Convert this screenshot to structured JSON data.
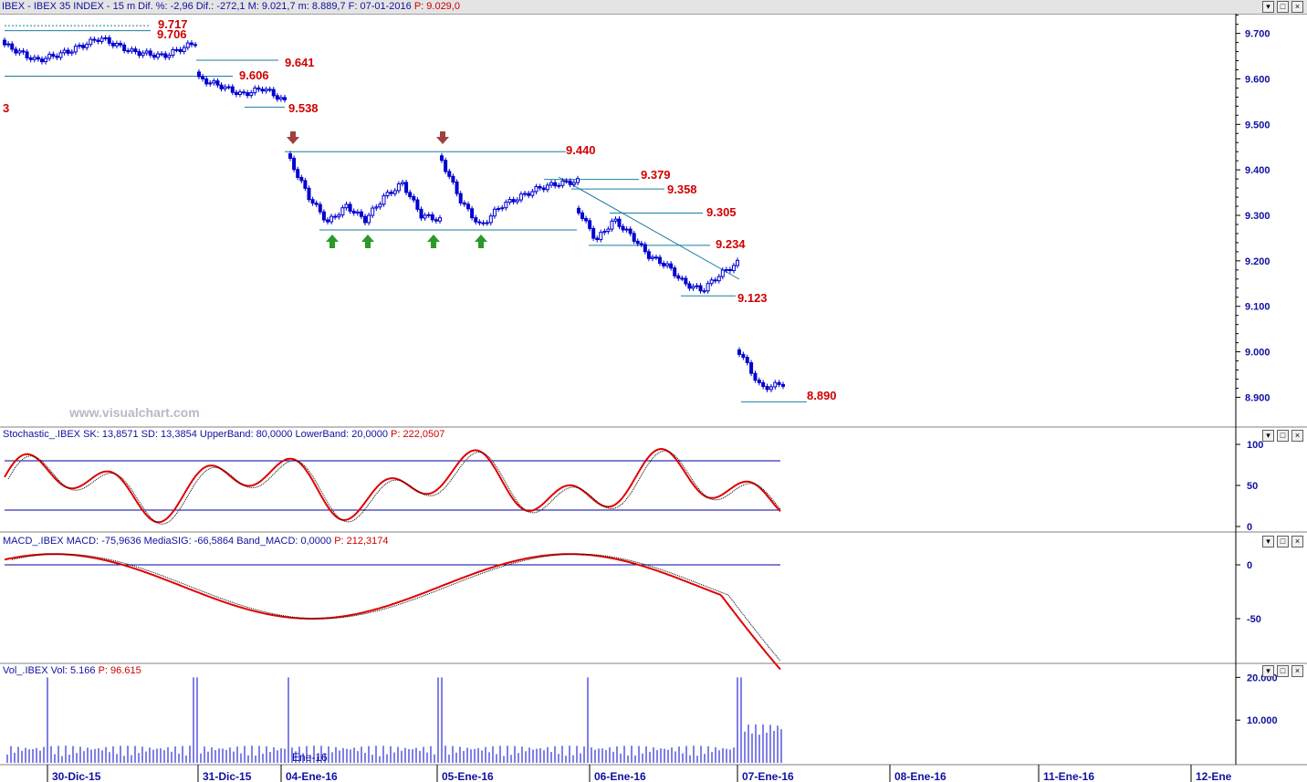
{
  "header": {
    "title": "IBEX - IBEX 35 INDEX - 15 m  Dif. %: -2,96  Dif.: -272,1  M: 9.021,7  m: 8.889,7  F: 07-01-2016",
    "price": "P: 9.029,0"
  },
  "window_buttons": [
    "▾",
    "□",
    "×"
  ],
  "watermark": "www.visualchart.com",
  "panels": {
    "stochastic": {
      "name": "Stochastic_.IBEX",
      "values": "SK: 13,8571  SD: 13,3854  UpperBand: 80,0000  LowerBand: 20,0000",
      "price": "P: 222,0507",
      "ticks": [
        "100",
        "50",
        "0"
      ]
    },
    "macd": {
      "name": "MACD_.IBEX",
      "values": "MACD: -75,9636  MediaSIG: -66,5864  Band_MACD: 0,0000",
      "price": "P: 212,3174",
      "ticks": [
        "0",
        "-50"
      ]
    },
    "volume": {
      "name": "Vol_.IBEX",
      "values": "Vol: 5.166",
      "price": "P: 96.615",
      "ticks": [
        "20.000",
        "10.000"
      ]
    }
  },
  "colors": {
    "candle": "#0000d0",
    "level_line": "#1a7fa0",
    "level_label": "#d00000",
    "indicator": "#e00000",
    "signal": "#000000",
    "band": "#0000a0",
    "arrow_down": "#a04040",
    "arrow_up": "#2a9a2a"
  },
  "chart_data": {
    "type": "candlestick",
    "instrument": "IBEX 35 INDEX",
    "timeframe": "15 m",
    "y_axis_ticks": [
      "9.700",
      "9.600",
      "9.500",
      "9.400",
      "9.300",
      "9.200",
      "9.100",
      "9.000",
      "8.900"
    ],
    "x_axis_labels": [
      "30-Dic-15",
      "31-Dic-15",
      "04-Ene-16",
      "05-Ene-16",
      "06-Ene-16",
      "07-Ene-16",
      "08-Ene-16",
      "11-Ene-16",
      "12-Ene"
    ],
    "levels": [
      "9.717",
      "9.706",
      "9.641",
      "9.606",
      "9.538",
      "9.440",
      "9.379",
      "9.358",
      "9.305",
      "9.234",
      "9.123",
      "8.890"
    ],
    "left_edge_label": "3",
    "volume_bar_label": "Ene-16",
    "price_path": [
      [
        "30-Dic-15",
        9675
      ],
      [
        "30-Dic-15",
        9640
      ],
      [
        "30-Dic-15",
        9660
      ],
      [
        "30-Dic-15",
        9690
      ],
      [
        "30-Dic-15",
        9660
      ],
      [
        "30-Dic-15",
        9650
      ],
      [
        "30-Dic-15",
        9680
      ],
      [
        "31-Dic-15",
        9600
      ],
      [
        "31-Dic-15",
        9585
      ],
      [
        "31-Dic-15",
        9565
      ],
      [
        "31-Dic-15",
        9580
      ],
      [
        "31-Dic-15",
        9550
      ],
      [
        "04-Ene-16",
        9420
      ],
      [
        "04-Ene-16",
        9340
      ],
      [
        "04-Ene-16",
        9285
      ],
      [
        "04-Ene-16",
        9320
      ],
      [
        "04-Ene-16",
        9290
      ],
      [
        "04-Ene-16",
        9340
      ],
      [
        "04-Ene-16",
        9370
      ],
      [
        "04-Ene-16",
        9300
      ],
      [
        "04-Ene-16",
        9290
      ],
      [
        "05-Ene-16",
        9420
      ],
      [
        "05-Ene-16",
        9330
      ],
      [
        "05-Ene-16",
        9275
      ],
      [
        "05-Ene-16",
        9320
      ],
      [
        "05-Ene-16",
        9340
      ],
      [
        "05-Ene-16",
        9360
      ],
      [
        "05-Ene-16",
        9370
      ],
      [
        "05-Ene-16",
        9375
      ],
      [
        "06-Ene-16",
        9310
      ],
      [
        "06-Ene-16",
        9245
      ],
      [
        "06-Ene-16",
        9290
      ],
      [
        "06-Ene-16",
        9255
      ],
      [
        "06-Ene-16",
        9210
      ],
      [
        "06-Ene-16",
        9190
      ],
      [
        "06-Ene-16",
        9150
      ],
      [
        "06-Ene-16",
        9135
      ],
      [
        "06-Ene-16",
        9170
      ],
      [
        "06-Ene-16",
        9195
      ],
      [
        "07-Ene-16",
        9000
      ],
      [
        "07-Ene-16",
        8920
      ],
      [
        "07-Ene-16",
        8930
      ]
    ]
  }
}
